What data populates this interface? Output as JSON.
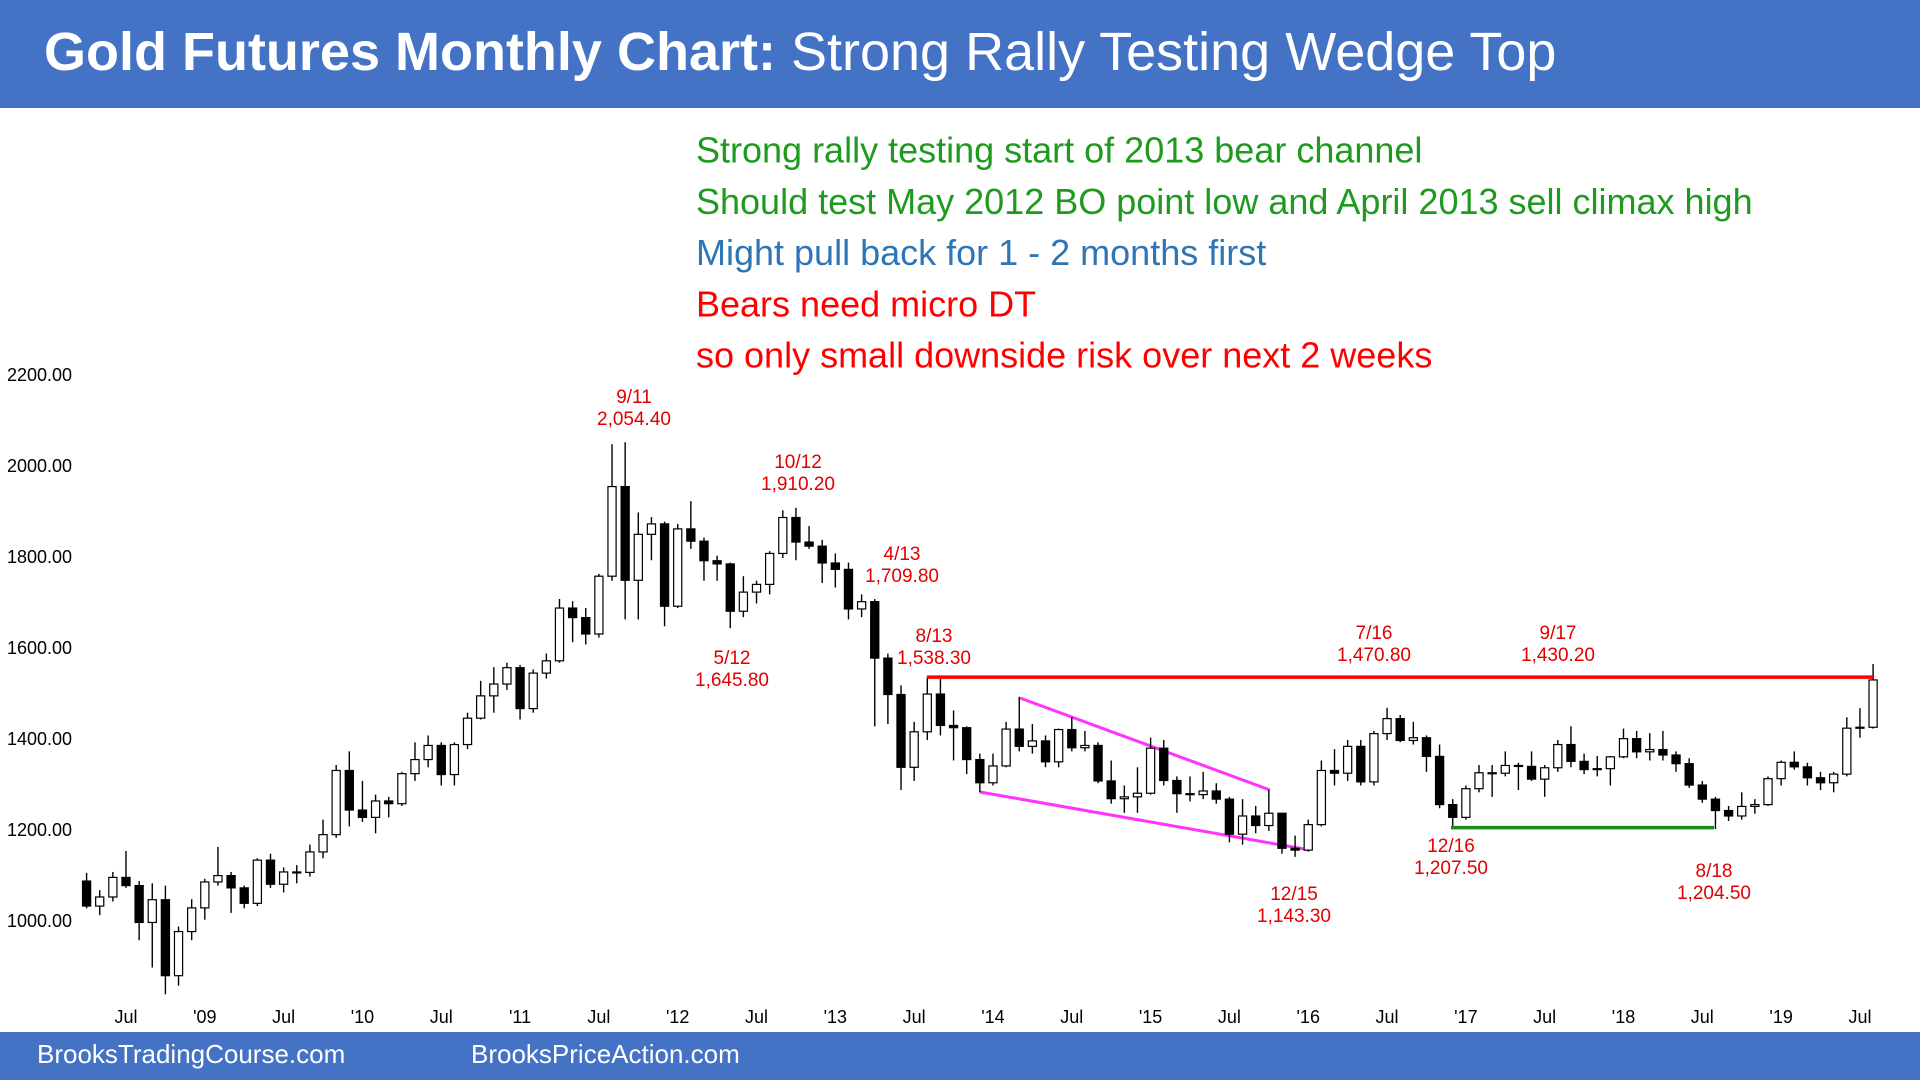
{
  "chart_data": {
    "type": "candlestick",
    "title": "Gold Futures Monthly Chart:",
    "subtitle": "Strong Rally Testing Wedge Top",
    "notes": [
      {
        "text": "Strong rally testing start of 2013 bear channel",
        "color": "#1e9a1e"
      },
      {
        "text": "Should test May 2012 BO point low and April 2013 sell climax high",
        "color": "#1e9a1e"
      },
      {
        "text": "Might pull back for 1 - 2 months first",
        "color": "#2e75b6"
      },
      {
        "text": "Bears need micro DT",
        "color": "#ff0000"
      },
      {
        "text": "so only small downside risk over next 2 weeks",
        "color": "#ff0000"
      }
    ],
    "annotations": [
      {
        "label": "9/11",
        "value": {
          "value": 2054.4,
          "label": "2,054.40"
        }
      },
      {
        "label": "10/12",
        "value": {
          "value": 1910.2,
          "label": "1,910.20"
        }
      },
      {
        "label": "4/13",
        "value": {
          "value": 1709.8,
          "label": "1,709.80"
        }
      },
      {
        "label": "5/12",
        "value": {
          "value": 1645.8,
          "label": "1,645.80"
        }
      },
      {
        "label": "8/13",
        "value": {
          "value": 1538.3,
          "label": "1,538.30"
        }
      },
      {
        "label": "7/16",
        "value": {
          "value": 1470.8,
          "label": "1,470.80"
        }
      },
      {
        "label": "9/17",
        "value": {
          "value": 1430.2,
          "label": "1,430.20"
        }
      },
      {
        "label": "12/15",
        "value": {
          "value": 1143.3,
          "label": "1,143.30"
        }
      },
      {
        "label": "12/16",
        "value": {
          "value": 1207.5,
          "label": "1,207.50"
        }
      },
      {
        "label": "8/18",
        "value": {
          "value": 1204.5,
          "label": "1,204.50"
        }
      }
    ],
    "footer": [
      "BrooksTradingCourse.com",
      "BrooksPriceAction.com"
    ],
    "categories": [
      null,
      null,
      null,
      "Jul",
      null,
      null,
      null,
      null,
      null,
      "'09",
      null,
      null,
      null,
      null,
      null,
      "Jul",
      null,
      null,
      null,
      null,
      null,
      "'10",
      null,
      null,
      null,
      null,
      null,
      "Jul",
      null,
      null,
      null,
      null,
      null,
      "'11",
      null,
      null,
      null,
      null,
      null,
      "Jul",
      null,
      null,
      null,
      null,
      null,
      "'12",
      null,
      null,
      null,
      null,
      null,
      "Jul",
      null,
      null,
      null,
      null,
      null,
      "'13",
      null,
      null,
      null,
      null,
      null,
      "Jul",
      null,
      null,
      null,
      null,
      null,
      "'14",
      null,
      null,
      null,
      null,
      null,
      "Jul",
      null,
      null,
      null,
      null,
      null,
      "'15",
      null,
      null,
      null,
      null,
      null,
      "Jul",
      null,
      null,
      null,
      null,
      null,
      "'16",
      null,
      null,
      null,
      null,
      null,
      "Jul",
      null,
      null,
      null,
      null,
      null,
      "'17",
      null,
      null,
      null,
      null,
      null,
      "Jul",
      null,
      null,
      null,
      null,
      null,
      "'18",
      null,
      null,
      null,
      null,
      null,
      "Jul",
      null,
      null,
      null,
      null,
      null,
      "'19",
      null,
      null,
      null,
      null,
      null,
      "Jul",
      null
    ],
    "open": [
      1090,
      1035,
      1055,
      1098,
      1080,
      999,
      1049,
      882,
      979,
      1031,
      1088,
      1102,
      1075,
      1041,
      1136,
      1083,
      1110,
      1109,
      1154,
      1192,
      1333,
      1246,
      1230,
      1266,
      1260,
      1326,
      1357,
      1388,
      1324,
      1390,
      1448,
      1497,
      1523,
      1559,
      1469,
      1547,
      1574,
      1690,
      1669,
      1633,
      1760,
      1957,
      1751,
      1852,
      1875,
      1694,
      1864,
      1837,
      1794,
      1787,
      1683,
      1725,
      1742,
      1810,
      1889,
      1835,
      1826,
      1789,
      1775,
      1688,
      1704,
      1580,
      1500,
      1340,
      1418,
      1501,
      1432,
      1427,
      1357,
      1306,
      1343,
      1424,
      1386,
      1398,
      1352,
      1423,
      1383,
      1388,
      1310,
      1271,
      1275,
      1283,
      1382,
      1311,
      1282,
      1280,
      1288,
      1270,
      1193,
      1233,
      1212,
      1239,
      1162,
      1158,
      1214,
      1333,
      1327,
      1386,
      1308,
      1414,
      1447,
      1399,
      1405,
      1364,
      1258,
      1230,
      1293,
      1328,
      1327,
      1344,
      1342,
      1314,
      1339,
      1390,
      1353,
      1335,
      1337,
      1363,
      1403,
      1374,
      1379,
      1367,
      1348,
      1301,
      1270,
      1245,
      1233,
      1254,
      1258,
      1315,
      1351,
      1341,
      1317,
      1306,
      1325,
      1426,
      1428
    ],
    "high": [
      1108,
      1070,
      1110,
      1156,
      1090,
      1085,
      1080,
      990,
      1050,
      1095,
      1165,
      1110,
      1080,
      1140,
      1150,
      1120,
      1125,
      1170,
      1225,
      1345,
      1375,
      1310,
      1280,
      1275,
      1330,
      1395,
      1410,
      1395,
      1395,
      1460,
      1530,
      1560,
      1570,
      1565,
      1555,
      1590,
      1710,
      1705,
      1690,
      1765,
      2050,
      2054.4,
      1900,
      1890,
      1880,
      1875,
      1925,
      1845,
      1805,
      1790,
      1760,
      1750,
      1815,
      1905,
      1910.2,
      1870,
      1840,
      1810,
      1790,
      1720,
      1709.8,
      1590,
      1520,
      1440,
      1538.3,
      1535,
      1465,
      1430,
      1370,
      1370,
      1440,
      1495,
      1435,
      1410,
      1425,
      1450,
      1420,
      1395,
      1355,
      1300,
      1340,
      1405,
      1400,
      1320,
      1320,
      1330,
      1305,
      1275,
      1270,
      1255,
      1290,
      1240,
      1190,
      1225,
      1355,
      1380,
      1400,
      1400,
      1420,
      1470.8,
      1455,
      1440,
      1410,
      1390,
      1270,
      1300,
      1345,
      1345,
      1375,
      1350,
      1375,
      1345,
      1400,
      1430.2,
      1370,
      1365,
      1365,
      1425,
      1420,
      1415,
      1420,
      1375,
      1360,
      1310,
      1275,
      1255,
      1285,
      1270,
      1320,
      1355,
      1375,
      1350,
      1330,
      1330,
      1450,
      1470,
      1567
    ],
    "low": [
      1030,
      1015,
      1045,
      1075,
      960,
      900,
      841,
      860,
      960,
      1005,
      1080,
      1020,
      1030,
      1035,
      1075,
      1065,
      1085,
      1100,
      1140,
      1185,
      1210,
      1220,
      1195,
      1230,
      1255,
      1310,
      1340,
      1300,
      1300,
      1380,
      1445,
      1460,
      1510,
      1445,
      1460,
      1535,
      1570,
      1615,
      1610,
      1625,
      1750,
      1665,
      1665,
      1795,
      1650,
      1690,
      1820,
      1750,
      1750,
      1645.8,
      1670,
      1700,
      1720,
      1800,
      1795,
      1820,
      1745,
      1735,
      1665,
      1670,
      1430,
      1435,
      1290,
      1310,
      1400,
      1410,
      1355,
      1325,
      1285,
      1300,
      1340,
      1375,
      1370,
      1340,
      1340,
      1375,
      1375,
      1305,
      1260,
      1240,
      1240,
      1280,
      1300,
      1240,
      1265,
      1270,
      1260,
      1175,
      1170,
      1195,
      1200,
      1150,
      1143.3,
      1155,
      1210,
      1300,
      1310,
      1300,
      1300,
      1400,
      1395,
      1390,
      1330,
      1250,
      1207.5,
      1225,
      1285,
      1275,
      1320,
      1290,
      1310,
      1275,
      1330,
      1340,
      1325,
      1320,
      1300,
      1360,
      1360,
      1355,
      1355,
      1330,
      1295,
      1262,
      1204.5,
      1222,
      1225,
      1238,
      1255,
      1300,
      1335,
      1300,
      1290,
      1285,
      1320,
      1405,
      1425
    ],
    "close": [
      1035,
      1055,
      1098,
      1080,
      999,
      1049,
      882,
      979,
      1031,
      1088,
      1102,
      1075,
      1041,
      1136,
      1083,
      1110,
      1109,
      1154,
      1192,
      1333,
      1246,
      1230,
      1266,
      1260,
      1326,
      1357,
      1388,
      1324,
      1390,
      1448,
      1497,
      1523,
      1559,
      1469,
      1547,
      1574,
      1690,
      1669,
      1633,
      1760,
      1957,
      1751,
      1852,
      1875,
      1694,
      1864,
      1837,
      1794,
      1787,
      1683,
      1725,
      1742,
      1810,
      1889,
      1835,
      1826,
      1789,
      1775,
      1688,
      1704,
      1580,
      1500,
      1340,
      1418,
      1501,
      1432,
      1427,
      1357,
      1306,
      1343,
      1424,
      1386,
      1398,
      1352,
      1423,
      1383,
      1388,
      1310,
      1271,
      1275,
      1283,
      1382,
      1311,
      1282,
      1280,
      1288,
      1270,
      1193,
      1233,
      1212,
      1239,
      1162,
      1158,
      1214,
      1333,
      1327,
      1386,
      1308,
      1414,
      1447,
      1399,
      1405,
      1364,
      1258,
      1230,
      1293,
      1328,
      1327,
      1344,
      1342,
      1314,
      1339,
      1390,
      1353,
      1335,
      1337,
      1363,
      1403,
      1374,
      1379,
      1367,
      1348,
      1301,
      1270,
      1245,
      1233,
      1254,
      1258,
      1315,
      1351,
      1341,
      1317,
      1306,
      1325,
      1426,
      1428,
      1532
    ],
    "ylim": [
      820,
      2250
    ],
    "yticks": [
      {
        "value": 1000,
        "label": "1000.00"
      },
      {
        "value": 1200,
        "label": "1200.00"
      },
      {
        "value": 1400,
        "label": "1400.00"
      },
      {
        "value": 1600,
        "label": "1600.00"
      },
      {
        "value": 1800,
        "label": "1800.00"
      },
      {
        "value": 2000,
        "label": "2000.00"
      },
      {
        "value": 2200,
        "label": "2200.00"
      }
    ],
    "grid": false,
    "up_color": "#ffffff",
    "down_color": "#000000"
  }
}
